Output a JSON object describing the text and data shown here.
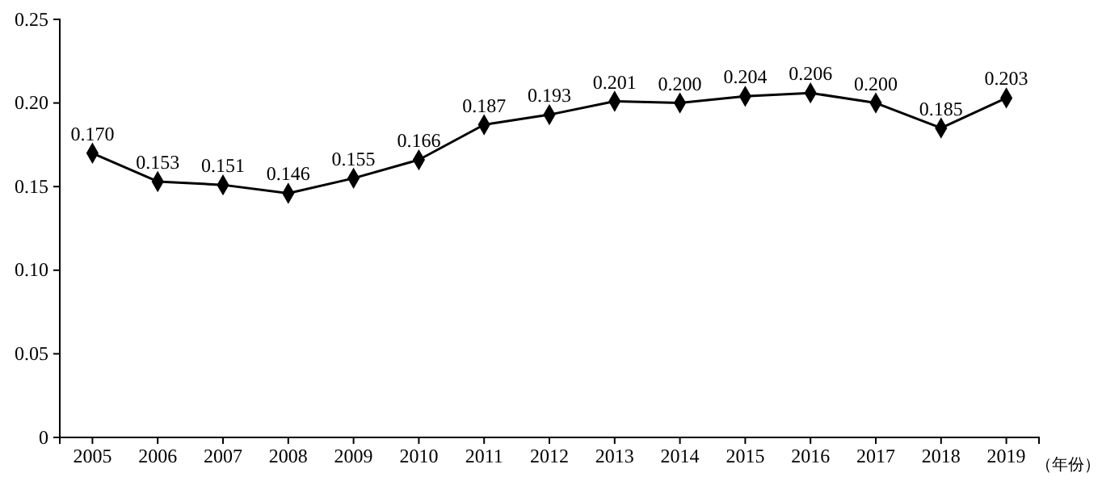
{
  "chart_data": {
    "type": "line",
    "xlabel": "（年份）",
    "categories": [
      "2005",
      "2006",
      "2007",
      "2008",
      "2009",
      "2010",
      "2011",
      "2012",
      "2013",
      "2014",
      "2015",
      "2016",
      "2017",
      "2018",
      "2019"
    ],
    "series": [
      {
        "color": "#000000",
        "values": [
          0.17,
          0.153,
          0.151,
          0.146,
          0.155,
          0.166,
          0.187,
          0.193,
          0.201,
          0.2,
          0.204,
          0.206,
          0.2,
          0.185,
          0.203
        ],
        "value_labels": [
          "0.170",
          "0.153",
          "0.151",
          "0.146",
          "0.155",
          "0.166",
          "0.187",
          "0.193",
          "0.201",
          "0.200",
          "0.204",
          "0.206",
          "0.200",
          "0.185",
          "0.203"
        ]
      }
    ],
    "ylim": [
      0,
      0.25
    ],
    "yticks": [
      {
        "value": 0,
        "label": "0"
      },
      {
        "value": 0.05,
        "label": "0.05"
      },
      {
        "value": 0.1,
        "label": "0.10"
      },
      {
        "value": 0.15,
        "label": "0.15"
      },
      {
        "value": 0.2,
        "label": "0.20"
      },
      {
        "value": 0.25,
        "label": "0.25"
      }
    ],
    "marker": "diamond",
    "line_style": "solid"
  }
}
